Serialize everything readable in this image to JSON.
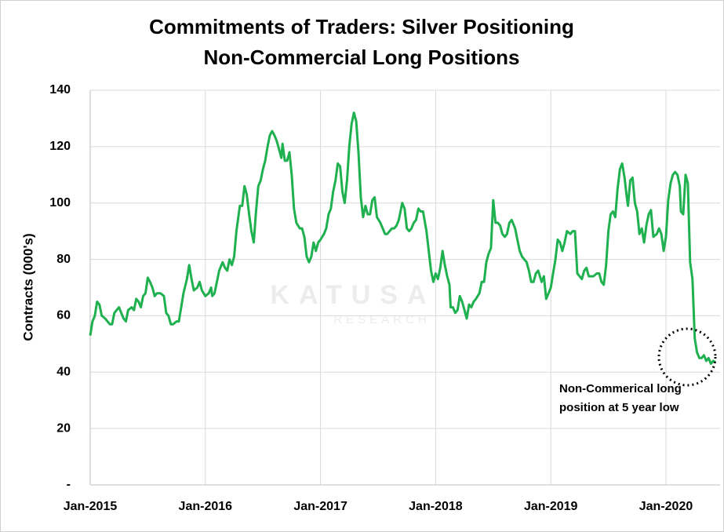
{
  "chart_data": {
    "type": "line",
    "title": [
      "Commitments of Traders: Silver Positioning",
      "Non-Commercial Long Positions"
    ],
    "y_label": "Contracts  (000's)",
    "annotation": [
      "Non-Commerical long",
      "position at 5 year low"
    ],
    "watermark": [
      "KATUSA",
      "RESEARCH"
    ],
    "grid": true,
    "xlim": [
      2015,
      2020.47
    ],
    "ylim": [
      0,
      140
    ],
    "xticks": [
      {
        "value": 2015,
        "label": "Jan-2015"
      },
      {
        "value": 2016,
        "label": "Jan-2016"
      },
      {
        "value": 2017,
        "label": "Jan-2017"
      },
      {
        "value": 2018,
        "label": "Jan-2018"
      },
      {
        "value": 2019,
        "label": "Jan-2019"
      },
      {
        "value": 2020,
        "label": "Jan-2020"
      }
    ],
    "yticks": [
      {
        "value": 0,
        "label": "-"
      },
      20,
      40,
      60,
      80,
      100,
      120,
      140
    ],
    "series": [
      {
        "name": "Non-Commercial Long",
        "color": "#1fb04f",
        "x": [
          2015.0,
          2015.02,
          2015.04,
          2015.06,
          2015.08,
          2015.1,
          2015.13,
          2015.17,
          2015.19,
          2015.21,
          2015.25,
          2015.27,
          2015.29,
          2015.31,
          2015.33,
          2015.36,
          2015.38,
          2015.4,
          2015.42,
          2015.44,
          2015.46,
          2015.48,
          2015.5,
          2015.52,
          2015.54,
          2015.56,
          2015.58,
          2015.61,
          2015.64,
          2015.66,
          2015.68,
          2015.7,
          2015.72,
          2015.75,
          2015.77,
          2015.79,
          2015.81,
          2015.84,
          2015.86,
          2015.88,
          2015.9,
          2015.93,
          2015.95,
          2015.97,
          2016.0,
          2016.03,
          2016.05,
          2016.06,
          2016.08,
          2016.1,
          2016.12,
          2016.15,
          2016.17,
          2016.19,
          2016.21,
          2016.23,
          2016.25,
          2016.27,
          2016.3,
          2016.32,
          2016.34,
          2016.36,
          2016.38,
          2016.4,
          2016.42,
          2016.44,
          2016.46,
          2016.48,
          2016.5,
          2016.52,
          2016.54,
          2016.56,
          2016.58,
          2016.6,
          2016.62,
          2016.64,
          2016.66,
          2016.67,
          2016.69,
          2016.71,
          2016.73,
          2016.75,
          2016.77,
          2016.79,
          2016.82,
          2016.84,
          2016.86,
          2016.88,
          2016.9,
          2016.92,
          2016.94,
          2016.96,
          2016.98,
          2017.0,
          2017.03,
          2017.05,
          2017.07,
          2017.09,
          2017.11,
          2017.13,
          2017.15,
          2017.17,
          2017.19,
          2017.21,
          2017.23,
          2017.25,
          2017.27,
          2017.29,
          2017.31,
          2017.33,
          2017.35,
          2017.37,
          2017.39,
          2017.41,
          2017.43,
          2017.45,
          2017.47,
          2017.49,
          2017.52,
          2017.54,
          2017.56,
          2017.58,
          2017.6,
          2017.62,
          2017.64,
          2017.66,
          2017.68,
          2017.71,
          2017.73,
          2017.75,
          2017.77,
          2017.79,
          2017.81,
          2017.83,
          2017.85,
          2017.87,
          2017.89,
          2017.92,
          2017.94,
          2017.96,
          2017.98,
          2018.0,
          2018.02,
          2018.04,
          2018.06,
          2018.08,
          2018.1,
          2018.12,
          2018.13,
          2018.15,
          2018.17,
          2018.19,
          2018.21,
          2018.23,
          2018.25,
          2018.27,
          2018.29,
          2018.31,
          2018.33,
          2018.35,
          2018.38,
          2018.4,
          2018.42,
          2018.44,
          2018.46,
          2018.48,
          2018.5,
          2018.52,
          2018.54,
          2018.56,
          2018.58,
          2018.6,
          2018.62,
          2018.64,
          2018.66,
          2018.69,
          2018.71,
          2018.73,
          2018.75,
          2018.77,
          2018.79,
          2018.81,
          2018.83,
          2018.85,
          2018.87,
          2018.89,
          2018.92,
          2018.94,
          2018.96,
          2018.98,
          2019.0,
          2019.02,
          2019.04,
          2019.06,
          2019.08,
          2019.1,
          2019.12,
          2019.14,
          2019.17,
          2019.19,
          2019.21,
          2019.23,
          2019.25,
          2019.27,
          2019.29,
          2019.31,
          2019.33,
          2019.35,
          2019.37,
          2019.4,
          2019.42,
          2019.44,
          2019.46,
          2019.48,
          2019.5,
          2019.52,
          2019.54,
          2019.56,
          2019.58,
          2019.6,
          2019.62,
          2019.64,
          2019.66,
          2019.67,
          2019.69,
          2019.71,
          2019.73,
          2019.75,
          2019.77,
          2019.79,
          2019.81,
          2019.83,
          2019.85,
          2019.87,
          2019.89,
          2019.92,
          2019.94,
          2019.96,
          2019.98,
          2020.0,
          2020.02,
          2020.04,
          2020.06,
          2020.08,
          2020.1,
          2020.12,
          2020.13,
          2020.15,
          2020.17,
          2020.19,
          2020.21,
          2020.23,
          2020.25,
          2020.27,
          2020.29,
          2020.31,
          2020.33,
          2020.35,
          2020.37,
          2020.39,
          2020.41,
          2020.43
        ],
        "values": [
          53,
          58,
          60,
          65,
          64,
          60,
          59,
          57,
          57,
          61,
          63,
          61,
          59,
          58,
          62,
          63,
          62,
          66,
          65,
          63,
          67,
          68,
          73.5,
          72,
          70,
          67,
          68,
          68,
          67,
          61,
          60,
          57,
          57,
          58,
          58,
          63,
          68,
          73,
          78,
          73,
          69,
          70,
          72,
          69,
          67,
          68,
          70,
          67,
          68,
          72,
          76,
          79,
          77,
          76,
          80,
          78,
          81,
          90,
          99,
          99,
          106,
          103,
          96,
          90,
          86,
          97,
          106,
          108,
          112,
          115,
          120,
          124,
          125.5,
          124,
          122,
          119,
          116,
          121,
          115,
          115,
          118,
          110,
          98,
          93,
          91,
          91,
          88,
          81,
          79,
          81,
          86,
          83,
          86,
          87,
          89,
          91,
          96,
          98,
          104,
          108,
          114,
          113,
          104,
          100,
          108,
          120,
          128,
          132,
          129,
          118,
          102,
          95,
          99,
          96,
          96,
          101,
          102,
          95,
          93,
          91,
          89,
          89,
          90,
          91,
          91,
          92,
          94,
          100,
          98,
          91,
          90,
          91,
          93,
          94,
          98,
          97,
          97,
          90,
          83,
          76,
          72,
          75,
          73,
          77,
          83,
          78,
          74,
          71,
          63,
          63,
          61,
          62,
          67,
          65,
          62,
          59,
          64,
          63,
          65,
          66,
          68,
          72,
          72,
          79,
          82,
          84,
          101,
          93,
          93,
          92,
          89,
          88,
          89,
          93,
          94,
          91,
          87,
          83,
          81,
          80,
          79,
          76,
          72,
          72,
          75,
          76,
          72,
          74,
          66,
          68,
          70,
          75,
          80,
          87,
          86,
          83,
          86,
          90,
          89,
          90,
          90,
          75,
          74,
          73,
          76,
          77,
          74,
          74,
          74,
          75,
          75,
          72,
          71,
          78,
          90,
          96,
          97,
          95,
          105,
          112,
          114,
          109,
          102,
          99,
          108,
          109,
          100,
          97,
          89,
          91,
          86,
          92,
          96,
          97.5,
          88,
          89,
          91,
          89,
          83,
          88,
          101,
          107,
          110,
          111,
          110,
          106,
          97,
          96,
          110,
          107,
          79,
          73,
          52,
          47,
          45,
          45,
          46,
          44,
          45,
          43,
          44,
          43.5
        ]
      }
    ]
  }
}
